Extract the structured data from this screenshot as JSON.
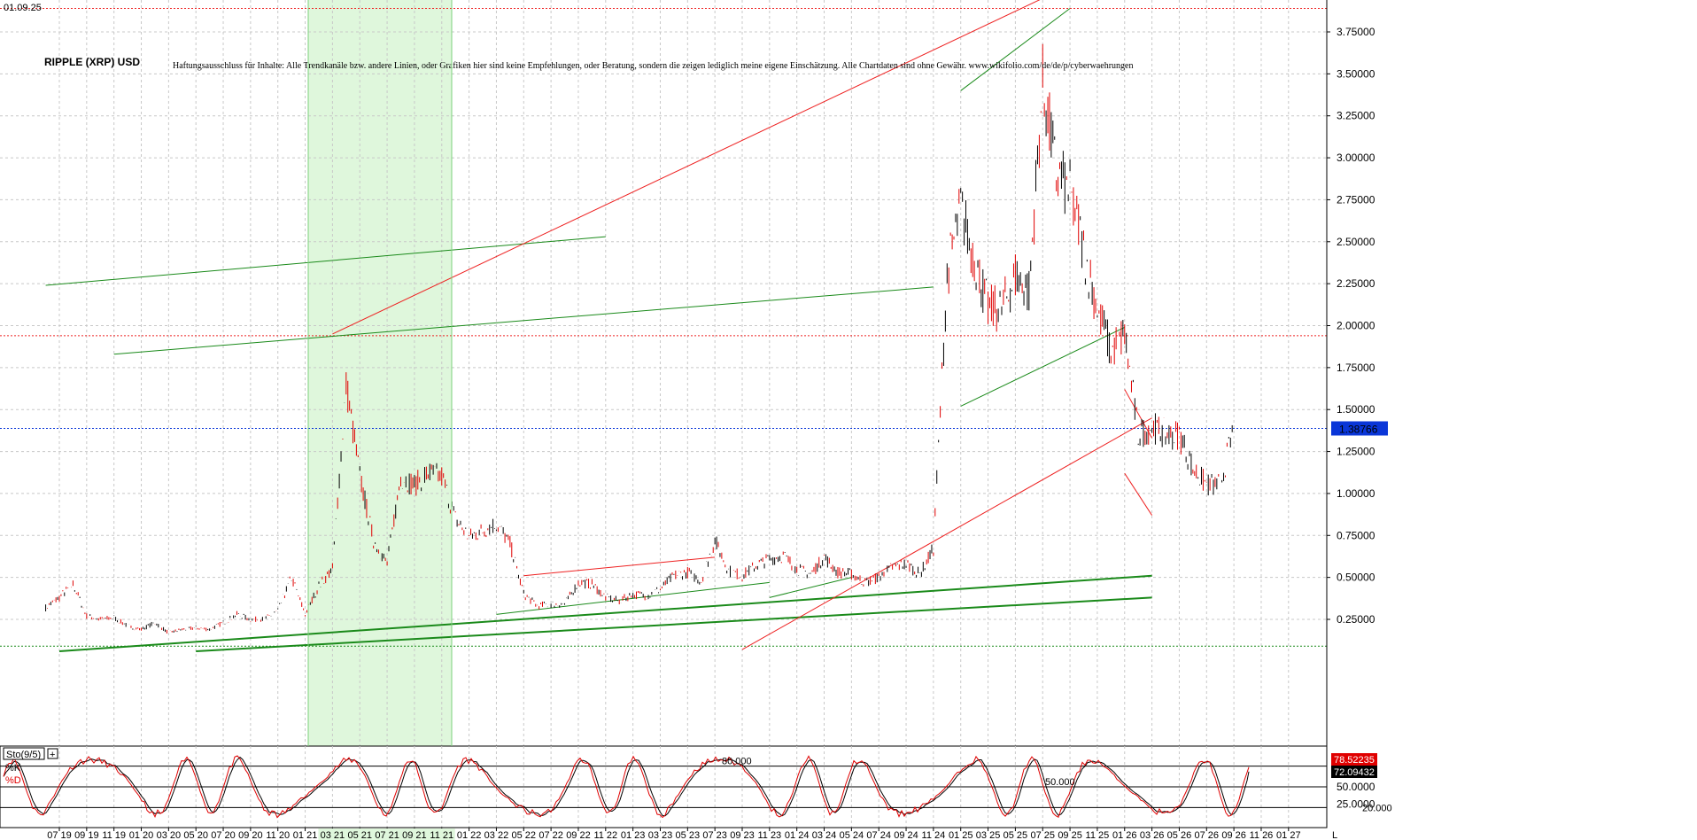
{
  "header": {
    "date_label": "01.09.25",
    "title": "RIPPLE (XRP) USD",
    "disclaimer": "Haftungsausschluss für Inhalte: Alle Trendkanäle bzw. andere Linien, oder Grafiken hier sind keine Empfehlungen, oder Beratung, sondern die zeigen lediglich meine eigene Einschätzung. Alle Chartdaten sind ohne Gewähr. www.wikifolio.com/de/de/p/cyberwaehrungen"
  },
  "colors": {
    "price": "#000000",
    "price_down": "#e00000",
    "trend_green": "#1a8a1a",
    "trend_red": "#ee2222",
    "highlight_band": "#dff7dc",
    "current_price_tag": "#0a36d8",
    "k_tag": "#e00000",
    "d_tag": "#000000",
    "grid": "#c8c8c8"
  },
  "chart_data": [
    {
      "type": "line",
      "title": "RIPPLE (XRP) USD",
      "y_axis_side": "right",
      "ylim": [
        0.05,
        3.95
      ],
      "y_ticks": [
        "3.75000",
        "3.50000",
        "3.25000",
        "3.00000",
        "2.75000",
        "2.50000",
        "2.25000",
        "2.00000",
        "1.75000",
        "1.50000",
        "1.25000",
        "1.00000",
        "0.75000",
        "0.50000",
        "0.25000"
      ],
      "y_tick_values": [
        3.75,
        3.5,
        3.25,
        3.0,
        2.75,
        2.5,
        2.25,
        2.0,
        1.75,
        1.5,
        1.25,
        1.0,
        0.75,
        0.5,
        0.25
      ],
      "x_tick_labels": [
        "07 19",
        "09 19",
        "11 19",
        "01 20",
        "03 20",
        "05 20",
        "07 20",
        "09 20",
        "11 20",
        "01 21",
        "03 21",
        "05 21",
        "07 21",
        "09 21",
        "11 21",
        "01 22",
        "03 22",
        "05 22",
        "07 22",
        "09 22",
        "11 22",
        "01 23",
        "03 23",
        "05 23",
        "07 23",
        "09 23",
        "11 23",
        "01 24",
        "03 24",
        "05 24",
        "07 24",
        "09 24",
        "11 24",
        "01 25",
        "03 25",
        "05 25",
        "07 25",
        "09 25",
        "11 25",
        "01 26",
        "03 26",
        "05 26",
        "07 26",
        "09 26",
        "11 26",
        "01 27"
      ],
      "x_axis_end_label": "L",
      "current_price": 1.38766,
      "current_price_label": "1.38766",
      "reference_levels": [
        3.89,
        1.94,
        0.09
      ],
      "highlight_period": [
        "03 21",
        "12 21"
      ],
      "series": [
        {
          "x": [
            "06 19",
            "07 19",
            "08 19",
            "09 19",
            "10 19",
            "11 19",
            "12 19",
            "01 20",
            "02 20",
            "03 20",
            "04 20",
            "05 20",
            "06 20",
            "07 20",
            "08 20",
            "09 20",
            "10 20",
            "11 20",
            "12 20",
            "01 21",
            "02 21",
            "03 21",
            "04 21",
            "05 21",
            "06 21",
            "07 21",
            "08 21",
            "09 21",
            "10 21",
            "11 21",
            "12 21",
            "01 22",
            "02 22",
            "03 22",
            "04 22",
            "05 22",
            "06 22",
            "07 22",
            "08 22",
            "09 22",
            "10 22",
            "11 22",
            "12 22",
            "01 23",
            "02 23",
            "03 23",
            "04 23",
            "05 23",
            "06 23",
            "07 23",
            "08 23",
            "09 23",
            "10 23",
            "11 23",
            "12 23",
            "01 24",
            "02 24",
            "03 24",
            "04 24",
            "05 24",
            "06 24",
            "07 24",
            "08 24",
            "09 24",
            "10 24",
            "11 24",
            "12 24",
            "01 25",
            "02 25",
            "03 25",
            "04 25",
            "05 25",
            "06 25",
            "07 25",
            "08 25",
            "09 25",
            "10 25",
            "11 25",
            "12 25",
            "01 26",
            "02 26",
            "03 26",
            "04 26",
            "05 26",
            "06 26",
            "07 26",
            "08 26",
            "09 26"
          ],
          "values": [
            0.32,
            0.38,
            0.46,
            0.27,
            0.25,
            0.26,
            0.21,
            0.19,
            0.23,
            0.17,
            0.19,
            0.2,
            0.19,
            0.23,
            0.28,
            0.25,
            0.25,
            0.3,
            0.5,
            0.28,
            0.45,
            0.55,
            1.65,
            1.1,
            0.72,
            0.58,
            1.1,
            1.05,
            1.12,
            1.1,
            0.85,
            0.74,
            0.78,
            0.82,
            0.7,
            0.4,
            0.33,
            0.34,
            0.34,
            0.47,
            0.46,
            0.38,
            0.36,
            0.4,
            0.39,
            0.43,
            0.51,
            0.53,
            0.48,
            0.72,
            0.54,
            0.51,
            0.57,
            0.61,
            0.63,
            0.55,
            0.52,
            0.62,
            0.53,
            0.52,
            0.47,
            0.5,
            0.56,
            0.58,
            0.52,
            0.67,
            2.3,
            2.7,
            2.4,
            2.1,
            2.1,
            2.3,
            2.2,
            3.45,
            2.9,
            2.8,
            2.45,
            2.1,
            1.85,
            1.95,
            1.35,
            1.4,
            1.35,
            1.35,
            1.15,
            1.05,
            1.05,
            1.39
          ]
        }
      ]
    },
    {
      "type": "line",
      "title": "Sto(9/5)",
      "ylim": [
        0,
        100
      ],
      "y_ticks": [
        "50.0000",
        "25.0000"
      ],
      "y_tick_values": [
        50,
        25
      ],
      "levels": [
        {
          "value": 80,
          "label": "80.000"
        },
        {
          "value": 50,
          "label": "50.000"
        },
        {
          "value": 20,
          "label": "20.000"
        }
      ],
      "series": [
        {
          "name": "%K",
          "last_value": 78.52235,
          "label": "78.52235"
        },
        {
          "name": "%D",
          "last_value": 72.09432,
          "label": "72.09432"
        }
      ]
    }
  ]
}
